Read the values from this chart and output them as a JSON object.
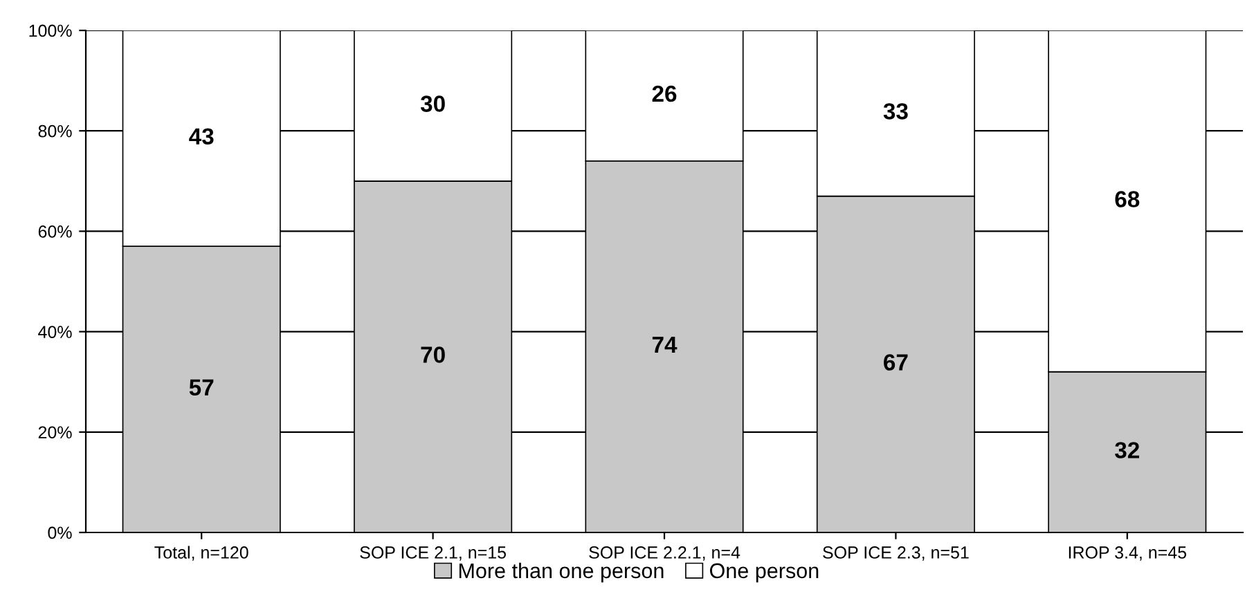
{
  "chart_data": {
    "type": "bar",
    "stacked": true,
    "categories": [
      "Total, n=120",
      "SOP ICE 2.1, n=15",
      "SOP ICE 2.2.1, n=4",
      "SOP ICE 2.3, n=51",
      "IROP 3.4, n=45"
    ],
    "series": [
      {
        "name": "More than one person",
        "color": "#c8c8c8",
        "values": [
          57,
          70,
          74,
          67,
          32
        ]
      },
      {
        "name": "One person",
        "color": "#ffffff",
        "values": [
          43,
          30,
          26,
          33,
          68
        ]
      }
    ],
    "ylim": [
      0,
      100
    ],
    "yticks": [
      {
        "value": 0,
        "label": "0%"
      },
      {
        "value": 20,
        "label": "20%"
      },
      {
        "value": 40,
        "label": "40%"
      },
      {
        "value": 60,
        "label": "60%"
      },
      {
        "value": 80,
        "label": "80%"
      },
      {
        "value": 100,
        "label": "100%"
      }
    ],
    "grid": "y",
    "data_labels": true,
    "legend": "bottom"
  }
}
